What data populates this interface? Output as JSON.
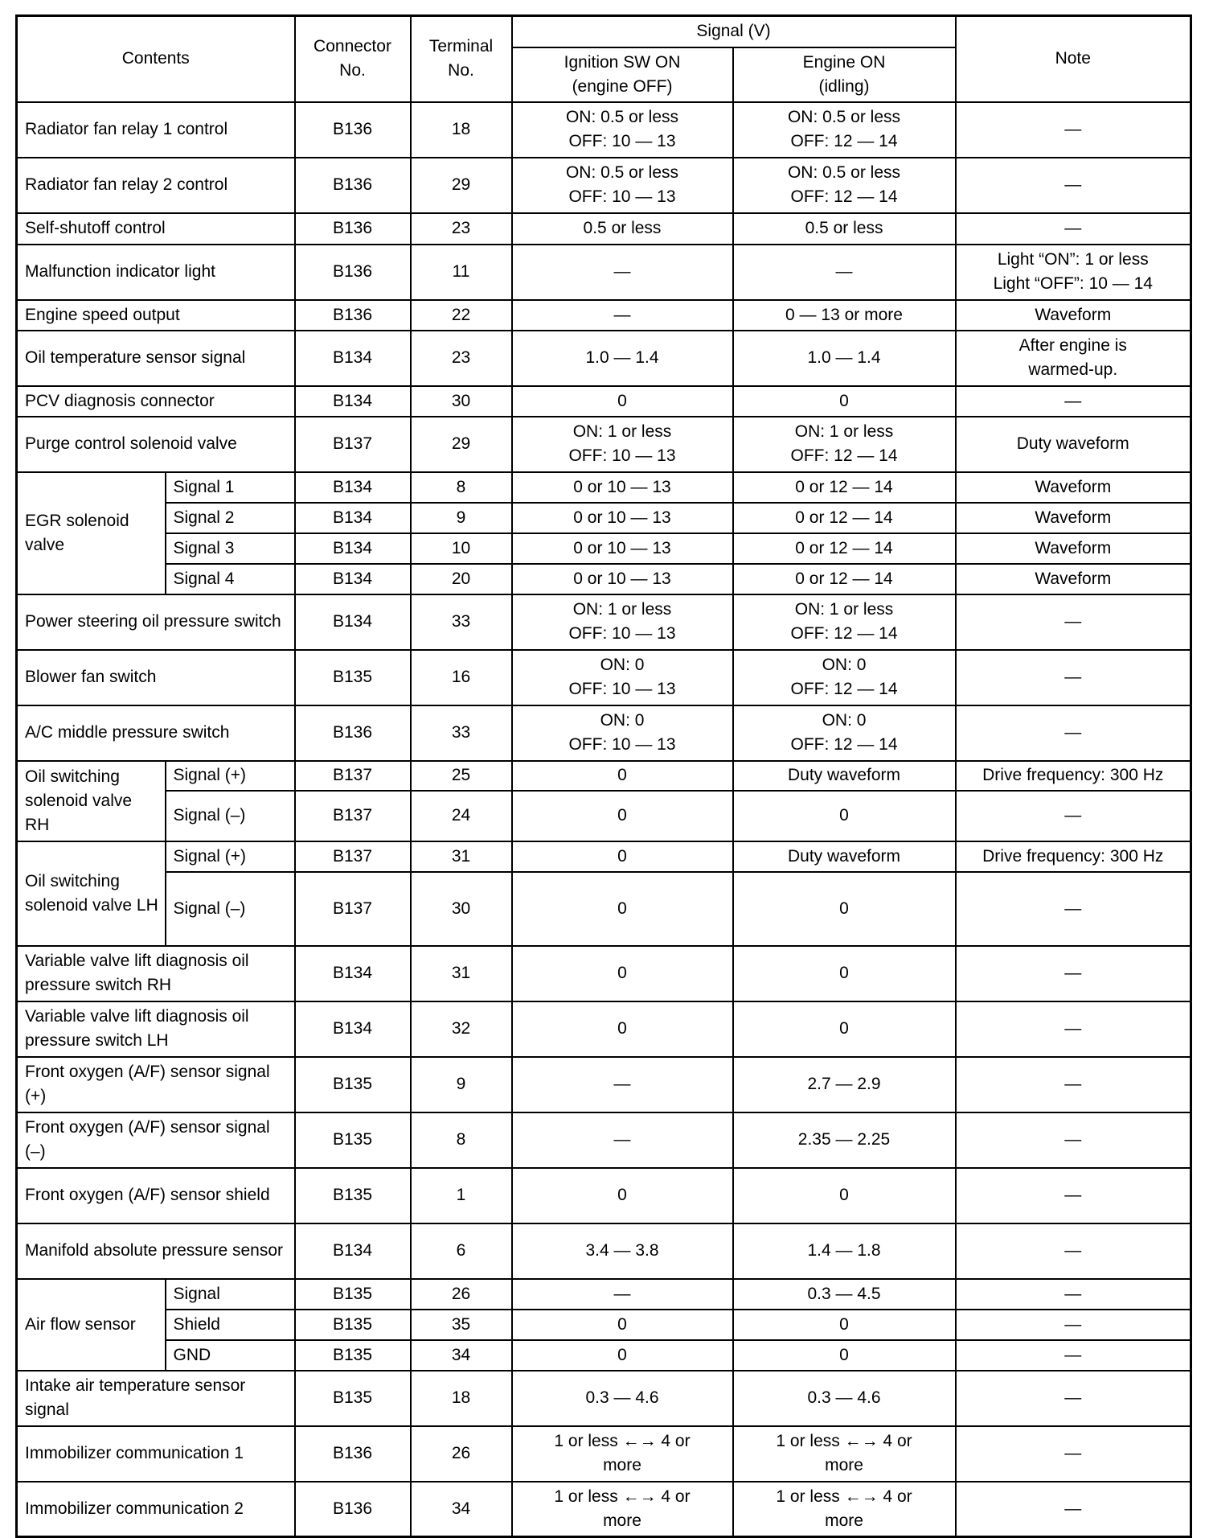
{
  "header": {
    "contents": "Contents",
    "connector": "Connector\nNo.",
    "terminal": "Terminal\nNo.",
    "signal": "Signal (V)",
    "ign": "Ignition SW ON\n(engine OFF)",
    "eng": "Engine ON\n(idling)",
    "note": "Note"
  },
  "groups": [
    {
      "label": "EGR solenoid valve"
    },
    {
      "label": "Oil switching solenoid valve RH"
    },
    {
      "label": "Oil switching solenoid valve LH"
    },
    {
      "label": "Air flow sensor"
    }
  ],
  "rows": [
    {
      "contents": "Radiator fan relay 1 control",
      "connector": "B136",
      "terminal": "18",
      "ign": "ON: 0.5 or less\nOFF: 10 — 13",
      "eng": "ON: 0.5 or less\nOFF: 12 — 14",
      "note": "—"
    },
    {
      "contents": "Radiator fan relay 2 control",
      "connector": "B136",
      "terminal": "29",
      "ign": "ON: 0.5 or less\nOFF: 10 — 13",
      "eng": "ON: 0.5 or less\nOFF: 12 — 14",
      "note": "—"
    },
    {
      "contents": "Self-shutoff control",
      "connector": "B136",
      "terminal": "23",
      "ign": "0.5 or less",
      "eng": "0.5 or less",
      "note": "—"
    },
    {
      "contents": "Malfunction indicator light",
      "connector": "B136",
      "terminal": "11",
      "ign": "—",
      "eng": "—",
      "note": "Light “ON”: 1 or less\nLight “OFF”: 10 — 14"
    },
    {
      "contents": "Engine speed output",
      "connector": "B136",
      "terminal": "22",
      "ign": "—",
      "eng": "0 — 13 or more",
      "note": "Waveform"
    },
    {
      "contents": "Oil temperature sensor signal",
      "connector": "B134",
      "terminal": "23",
      "ign": "1.0 — 1.4",
      "eng": "1.0 — 1.4",
      "note": "After engine is\nwarmed-up."
    },
    {
      "contents": "PCV diagnosis connector",
      "connector": "B134",
      "terminal": "30",
      "ign": "0",
      "eng": "0",
      "note": "—"
    },
    {
      "contents": "Purge control solenoid valve",
      "connector": "B137",
      "terminal": "29",
      "ign": "ON: 1 or less\nOFF: 10 — 13",
      "eng": "ON: 1 or less\nOFF: 12 — 14",
      "note": "Duty waveform"
    },
    {
      "group": 0,
      "sub": "Signal 1",
      "connector": "B134",
      "terminal": "8",
      "ign": "0 or 10 — 13",
      "eng": "0 or 12 — 14",
      "note": "Waveform"
    },
    {
      "group": 0,
      "sub": "Signal 2",
      "connector": "B134",
      "terminal": "9",
      "ign": "0 or 10 — 13",
      "eng": "0 or 12 — 14",
      "note": "Waveform"
    },
    {
      "group": 0,
      "sub": "Signal 3",
      "connector": "B134",
      "terminal": "10",
      "ign": "0 or 10 — 13",
      "eng": "0 or 12 — 14",
      "note": "Waveform"
    },
    {
      "group": 0,
      "sub": "Signal 4",
      "connector": "B134",
      "terminal": "20",
      "ign": "0 or 10 — 13",
      "eng": "0 or 12 — 14",
      "note": "Waveform"
    },
    {
      "contents": "Power steering oil pressure switch",
      "connector": "B134",
      "terminal": "33",
      "ign": "ON: 1 or less\nOFF: 10 — 13",
      "eng": "ON: 1 or less\nOFF: 12 — 14",
      "note": "—"
    },
    {
      "contents": "Blower fan switch",
      "connector": "B135",
      "terminal": "16",
      "ign": "ON: 0\nOFF: 10 — 13",
      "eng": "ON: 0\nOFF: 12 — 14",
      "note": "—"
    },
    {
      "contents": "A/C middle pressure switch",
      "connector": "B136",
      "terminal": "33",
      "ign": "ON: 0\nOFF: 10 — 13",
      "eng": "ON: 0\nOFF: 12 — 14",
      "note": "—"
    },
    {
      "group": 1,
      "sub": "Signal (+)",
      "connector": "B137",
      "terminal": "25",
      "ign": "0",
      "eng": "Duty waveform",
      "note": "Drive frequency: 300 Hz"
    },
    {
      "group": 1,
      "sub": "Signal (–)",
      "connector": "B137",
      "terminal": "24",
      "ign": "0",
      "eng": "0",
      "note": "—"
    },
    {
      "group": 2,
      "sub": "Signal (+)",
      "connector": "B137",
      "terminal": "31",
      "ign": "0",
      "eng": "Duty waveform",
      "note": "Drive frequency: 300 Hz"
    },
    {
      "group": 2,
      "sub": "Signal (–)",
      "connector": "B137",
      "terminal": "30",
      "ign": "0",
      "eng": "0",
      "note": "—"
    },
    {
      "contents": "Variable valve lift diagnosis oil pressure switch RH",
      "connector": "B134",
      "terminal": "31",
      "ign": "0",
      "eng": "0",
      "note": "—"
    },
    {
      "contents": "Variable valve lift diagnosis oil pressure switch LH",
      "connector": "B134",
      "terminal": "32",
      "ign": "0",
      "eng": "0",
      "note": "—"
    },
    {
      "contents": "Front oxygen (A/F) sensor signal (+)",
      "connector": "B135",
      "terminal": "9",
      "ign": "—",
      "eng": "2.7 — 2.9",
      "note": "—"
    },
    {
      "contents": "Front oxygen (A/F) sensor signal (–)",
      "connector": "B135",
      "terminal": "8",
      "ign": "—",
      "eng": "2.35 — 2.25",
      "note": "—"
    },
    {
      "contents": "Front oxygen (A/F) sensor shield",
      "connector": "B135",
      "terminal": "1",
      "ign": "0",
      "eng": "0",
      "note": "—"
    },
    {
      "contents": "Manifold absolute pressure sensor",
      "connector": "B134",
      "terminal": "6",
      "ign": "3.4 — 3.8",
      "eng": "1.4 — 1.8",
      "note": "—"
    },
    {
      "group": 3,
      "sub": "Signal",
      "connector": "B135",
      "terminal": "26",
      "ign": "—",
      "eng": "0.3 — 4.5",
      "note": "—"
    },
    {
      "group": 3,
      "sub": "Shield",
      "connector": "B135",
      "terminal": "35",
      "ign": "0",
      "eng": "0",
      "note": "—"
    },
    {
      "group": 3,
      "sub": "GND",
      "connector": "B135",
      "terminal": "34",
      "ign": "0",
      "eng": "0",
      "note": "—"
    },
    {
      "contents": "Intake air temperature sensor signal",
      "connector": "B135",
      "terminal": "18",
      "ign": "0.3 — 4.6",
      "eng": "0.3 — 4.6",
      "note": "—"
    },
    {
      "contents": "Immobilizer communication 1",
      "connector": "B136",
      "terminal": "26",
      "ign": "1 or less ←→ 4 or\nmore",
      "eng": "1 or less ←→ 4 or\nmore",
      "note": "—"
    },
    {
      "contents": "Immobilizer communication 2",
      "connector": "B136",
      "terminal": "34",
      "ign": "1 or less ←→ 4 or\nmore",
      "eng": "1 or less ←→ 4 or\nmore",
      "note": "—"
    }
  ]
}
